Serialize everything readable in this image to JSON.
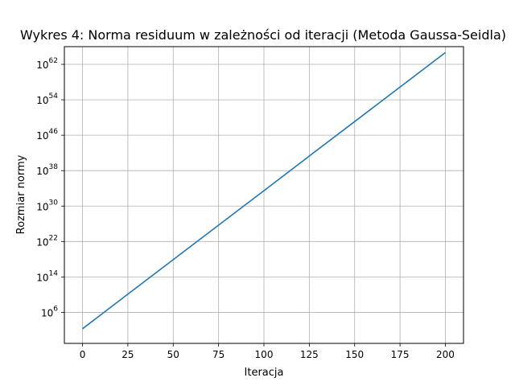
{
  "chart_data": {
    "type": "line",
    "title": "Wykres 4: Norma residuum w zależności od iteracji (Metoda Gaussa-Seidla)",
    "xlabel": "Iteracja",
    "ylabel": "Rozmiar normy",
    "xlim": [
      -10,
      210
    ],
    "ylim": [
      0.1,
      1e+66
    ],
    "yscale": "log",
    "grid": true,
    "x_ticks": [
      0,
      25,
      50,
      75,
      100,
      125,
      150,
      175,
      200
    ],
    "y_ticks": [
      {
        "base": "10",
        "exp": "6",
        "value": 1000000.0
      },
      {
        "base": "10",
        "exp": "14",
        "value": 100000000000000.0
      },
      {
        "base": "10",
        "exp": "22",
        "value": 1e+22
      },
      {
        "base": "10",
        "exp": "30",
        "value": 1e+30
      },
      {
        "base": "10",
        "exp": "38",
        "value": 1e+38
      },
      {
        "base": "10",
        "exp": "46",
        "value": 1e+46
      },
      {
        "base": "10",
        "exp": "54",
        "value": 1e+54
      },
      {
        "base": "10",
        "exp": "62",
        "value": 1e+62
      }
    ],
    "series": [
      {
        "color": "#1f77b4",
        "x": [
          0,
          25,
          50,
          75,
          100,
          125,
          150,
          175,
          200
        ],
        "y": [
          200.0,
          13000000000.0,
          8e+17,
          5e+25,
          3e+33,
          2e+41,
          1.2e+49,
          7.5e+56,
          4.6e+64
        ]
      }
    ],
    "colors": {
      "line": "#1f77b4",
      "grid": "#b0b0b0",
      "axes": "#000000"
    }
  }
}
